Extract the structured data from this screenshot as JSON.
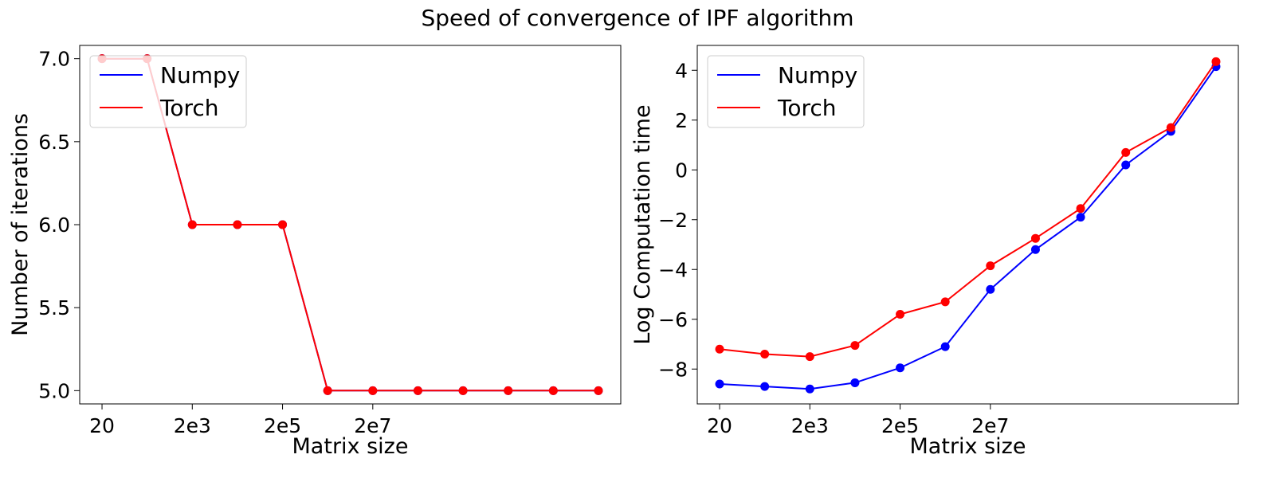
{
  "figure": {
    "title": "Speed of convergence of IPF algorithm"
  },
  "chart_data": [
    {
      "type": "line",
      "xlabel": "Matrix size",
      "ylabel": "Number of iterations",
      "x": [
        20,
        200,
        2000,
        20000,
        200000,
        2000000,
        20000000,
        200000000,
        2000000000,
        20000000000,
        200000000000,
        2000000000000
      ],
      "x_scale": "log",
      "xticks": [
        20,
        2000,
        200000,
        20000000
      ],
      "xtick_labels": [
        "20",
        "2e3",
        "2e5",
        "2e7"
      ],
      "ylim": [
        4.92,
        7.08
      ],
      "yticks": [
        5.0,
        5.5,
        6.0,
        6.5,
        7.0
      ],
      "ytick_labels": [
        "5.0",
        "5.5",
        "6.0",
        "6.5",
        "7.0"
      ],
      "legend": "top-left",
      "series": [
        {
          "name": "Numpy",
          "color": "#0000ff",
          "values": [
            7,
            7,
            6,
            6,
            6,
            5,
            5,
            5,
            5,
            5,
            5,
            5
          ]
        },
        {
          "name": "Torch",
          "color": "#ff0000",
          "values": [
            7,
            7,
            6,
            6,
            6,
            5,
            5,
            5,
            5,
            5,
            5,
            5
          ]
        }
      ]
    },
    {
      "type": "line",
      "xlabel": "Matrix size",
      "ylabel": "Log Computation time",
      "x": [
        20,
        200,
        2000,
        20000,
        200000,
        2000000,
        20000000,
        200000000,
        2000000000,
        20000000000,
        200000000000,
        2000000000000
      ],
      "x_scale": "log",
      "xticks": [
        20,
        2000,
        200000,
        20000000
      ],
      "xtick_labels": [
        "20",
        "2e3",
        "2e5",
        "2e7"
      ],
      "ylim": [
        -9.4,
        5.0
      ],
      "yticks": [
        -8,
        -6,
        -4,
        -2,
        0,
        2,
        4
      ],
      "ytick_labels": [
        "−8",
        "−6",
        "−4",
        "−2",
        "0",
        "2",
        "4"
      ],
      "legend": "top-left",
      "series": [
        {
          "name": "Numpy",
          "color": "#0000ff",
          "values": [
            -8.6,
            -8.7,
            -8.8,
            -8.55,
            -7.95,
            -7.1,
            -4.8,
            -3.2,
            -1.9,
            0.2,
            1.55,
            4.15
          ]
        },
        {
          "name": "Torch",
          "color": "#ff0000",
          "values": [
            -7.2,
            -7.4,
            -7.5,
            -7.05,
            -5.8,
            -5.3,
            -3.85,
            -2.75,
            -1.55,
            0.7,
            1.7,
            4.35
          ]
        }
      ]
    }
  ]
}
